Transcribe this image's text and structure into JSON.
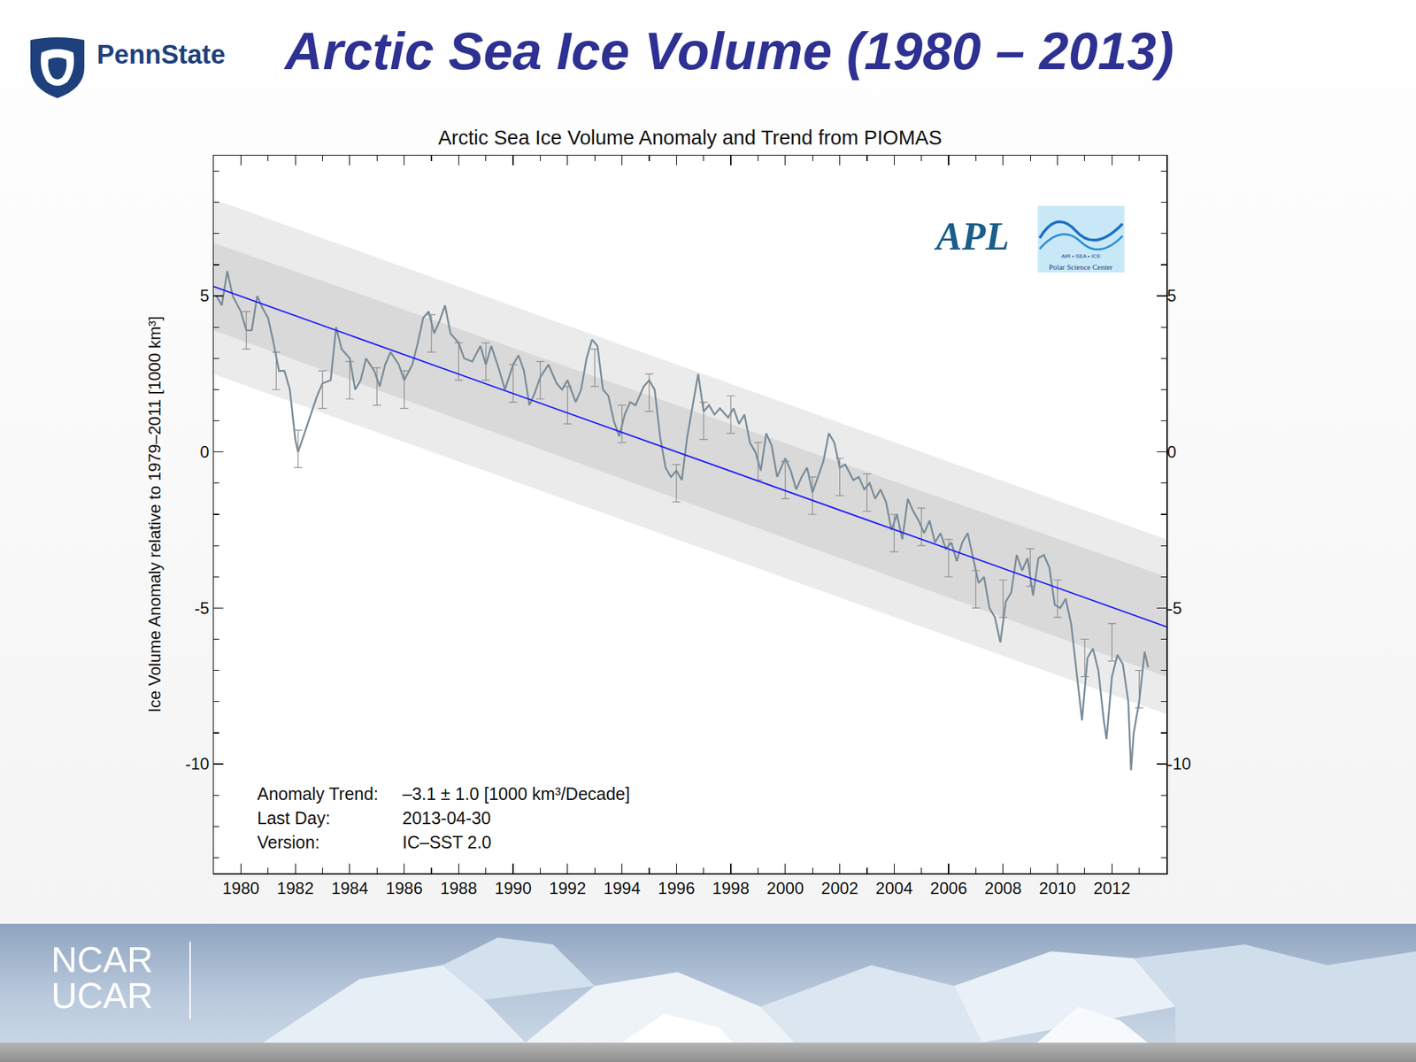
{
  "slide": {
    "title": "Arctic Sea Ice Volume (1980 – 2013)",
    "logo_text": "PennState",
    "footer": [
      "NCAR",
      "UCAR"
    ]
  },
  "chart_data": {
    "type": "line",
    "title": "Arctic Sea Ice Volume Anomaly and Trend from PIOMAS",
    "y_label": "Ice Volume Anomaly relative to 1979–2011 [1000 km³]",
    "x": [
      1979.1,
      1979.3,
      1979.5,
      1979.7,
      1980.0,
      1980.2,
      1980.4,
      1980.6,
      1980.8,
      1981.0,
      1981.2,
      1981.4,
      1981.6,
      1981.8,
      1982.0,
      1982.1,
      1982.3,
      1982.5,
      1982.8,
      1983.0,
      1983.3,
      1983.5,
      1983.7,
      1984.0,
      1984.2,
      1984.4,
      1984.6,
      1984.9,
      1985.1,
      1985.3,
      1985.5,
      1985.8,
      1986.0,
      1986.3,
      1986.5,
      1986.7,
      1986.9,
      1987.1,
      1987.3,
      1987.5,
      1987.7,
      1988.0,
      1988.2,
      1988.5,
      1988.8,
      1989.0,
      1989.2,
      1989.5,
      1989.7,
      1990.0,
      1990.2,
      1990.4,
      1990.6,
      1990.8,
      1991.0,
      1991.3,
      1991.6,
      1991.8,
      1992.0,
      1992.3,
      1992.5,
      1992.7,
      1992.9,
      1993.1,
      1993.3,
      1993.5,
      1993.7,
      1993.9,
      1994.1,
      1994.3,
      1994.5,
      1994.8,
      1995.0,
      1995.2,
      1995.4,
      1995.6,
      1995.8,
      1996.0,
      1996.2,
      1996.4,
      1996.6,
      1996.8,
      1997.0,
      1997.2,
      1997.4,
      1997.6,
      1997.9,
      1998.1,
      1998.3,
      1998.5,
      1998.7,
      1998.9,
      1999.1,
      1999.3,
      1999.5,
      1999.7,
      2000.0,
      2000.2,
      2000.4,
      2000.6,
      2000.8,
      2001.0,
      2001.2,
      2001.4,
      2001.6,
      2001.8,
      2002.0,
      2002.2,
      2002.5,
      2002.7,
      2002.9,
      2003.1,
      2003.3,
      2003.5,
      2003.7,
      2003.9,
      2004.1,
      2004.3,
      2004.5,
      2004.7,
      2004.9,
      2005.1,
      2005.3,
      2005.5,
      2005.7,
      2005.9,
      2006.1,
      2006.3,
      2006.5,
      2006.7,
      2006.9,
      2007.1,
      2007.3,
      2007.5,
      2007.7,
      2007.9,
      2008.1,
      2008.3,
      2008.5,
      2008.7,
      2008.9,
      2009.1,
      2009.3,
      2009.5,
      2009.7,
      2009.9,
      2010.1,
      2010.3,
      2010.5,
      2010.7,
      2010.9,
      2011.1,
      2011.3,
      2011.5,
      2011.7,
      2011.8,
      2012.0,
      2012.2,
      2012.4,
      2012.6,
      2012.7,
      2012.8,
      2013.0,
      2013.2,
      2013.33
    ],
    "values": [
      5.0,
      4.7,
      5.8,
      5.0,
      4.5,
      3.9,
      3.9,
      5.0,
      4.6,
      4.3,
      3.5,
      2.6,
      2.6,
      2.0,
      0.4,
      0.0,
      0.5,
      1.0,
      1.8,
      2.2,
      2.3,
      4.0,
      3.3,
      3.0,
      2.0,
      2.3,
      3.0,
      2.6,
      2.1,
      2.8,
      3.2,
      2.8,
      2.3,
      2.8,
      3.5,
      4.3,
      4.5,
      3.8,
      4.2,
      4.7,
      3.8,
      3.5,
      3.0,
      2.9,
      3.4,
      2.8,
      3.4,
      2.6,
      2.0,
      2.8,
      3.1,
      2.6,
      1.5,
      1.9,
      2.4,
      2.8,
      2.2,
      2.0,
      2.3,
      1.6,
      2.0,
      3.0,
      3.6,
      3.4,
      2.0,
      1.8,
      1.0,
      0.5,
      1.2,
      1.6,
      1.5,
      2.1,
      2.3,
      2.0,
      0.5,
      -0.5,
      -0.8,
      -0.6,
      -0.9,
      0.5,
      1.5,
      2.5,
      1.3,
      1.5,
      1.2,
      1.4,
      1.1,
      1.4,
      0.9,
      1.2,
      0.3,
      0.0,
      -0.6,
      0.6,
      0.2,
      -0.8,
      -0.2,
      -0.6,
      -1.2,
      -0.8,
      -0.5,
      -1.3,
      -0.8,
      -0.3,
      0.6,
      0.3,
      -0.5,
      -0.4,
      -0.9,
      -0.8,
      -1.2,
      -1.0,
      -1.5,
      -1.2,
      -1.6,
      -2.5,
      -2.0,
      -2.8,
      -1.5,
      -1.9,
      -2.2,
      -2.6,
      -2.2,
      -2.9,
      -2.6,
      -3.1,
      -2.9,
      -3.5,
      -2.9,
      -2.6,
      -3.4,
      -4.2,
      -4.0,
      -5.0,
      -5.3,
      -6.1,
      -4.8,
      -4.5,
      -3.3,
      -3.8,
      -3.4,
      -4.6,
      -3.4,
      -3.3,
      -3.7,
      -4.9,
      -5.0,
      -4.7,
      -5.5,
      -7.0,
      -8.6,
      -6.6,
      -6.3,
      -7.0,
      -8.6,
      -9.2,
      -7.2,
      -6.5,
      -6.8,
      -8.0,
      -10.2,
      -9.0,
      -8.0,
      -6.4,
      -6.9
    ],
    "color": "#7a8c99",
    "error_bars": {
      "x": [
        1980.2,
        1981.3,
        1982.1,
        1983.0,
        1984.0,
        1985.0,
        1986.0,
        1987.0,
        1988.0,
        1989.0,
        1990.0,
        1991.0,
        1992.0,
        1993.0,
        1994.0,
        1995.0,
        1996.0,
        1997.0,
        1998.0,
        1999.0,
        2000.0,
        2001.0,
        2002.0,
        2003.0,
        2004.0,
        2005.0,
        2006.0,
        2007.0,
        2008.0,
        2009.0,
        2010.0,
        2011.0,
        2012.0,
        2013.0
      ],
      "values": [
        3.9,
        2.6,
        0.1,
        2.0,
        2.3,
        2.1,
        2.0,
        3.8,
        2.9,
        2.9,
        2.2,
        2.3,
        1.5,
        2.7,
        0.9,
        1.9,
        -1.0,
        1.0,
        1.2,
        -0.3,
        -0.9,
        -1.4,
        -0.8,
        -1.3,
        -2.6,
        -2.4,
        -3.4,
        -4.4,
        -4.7,
        -3.7,
        -4.7,
        -6.6,
        -6.1,
        -7.6
      ],
      "err": [
        0.6,
        0.6,
        0.6,
        0.6,
        0.6,
        0.6,
        0.6,
        0.6,
        0.6,
        0.6,
        0.6,
        0.6,
        0.6,
        0.6,
        0.6,
        0.6,
        0.6,
        0.6,
        0.6,
        0.6,
        0.6,
        0.6,
        0.6,
        0.6,
        0.6,
        0.6,
        0.6,
        0.6,
        0.6,
        0.6,
        0.6,
        0.6,
        0.6,
        0.6
      ],
      "color": "#8a8a8a"
    },
    "trend": {
      "x": [
        1979,
        2014
      ],
      "values": [
        5.3,
        -5.6
      ],
      "color": "#1a1aff"
    },
    "bands": [
      {
        "x": [
          1979,
          2014
        ],
        "upper": [
          8.1,
          -2.8
        ],
        "lower": [
          2.5,
          -8.4
        ],
        "color": "#ebebeb"
      },
      {
        "x": [
          1979,
          2014
        ],
        "upper": [
          6.7,
          -4.0
        ],
        "lower": [
          3.9,
          -7.2
        ],
        "color": "#d9d9d9"
      }
    ],
    "xlim": [
      1979,
      2014
    ],
    "ylim": [
      -13.5,
      9.5
    ],
    "xticks": [
      1980,
      1982,
      1984,
      1986,
      1988,
      1990,
      1992,
      1994,
      1996,
      1998,
      2000,
      2002,
      2004,
      2006,
      2008,
      2010,
      2012
    ],
    "yticks": [
      -10,
      -5,
      0,
      5
    ],
    "notes": [
      [
        "Anomaly Trend:",
        "–3.1 ± 1.0 [1000 km³/Decade]"
      ],
      [
        "Last Day:",
        "2013-04-30"
      ],
      [
        "Version:",
        "IC–SST 2.0"
      ]
    ],
    "logos": [
      "APL",
      "AIR • SEA • ICE",
      "Polar Science Center"
    ],
    "grid": false
  }
}
